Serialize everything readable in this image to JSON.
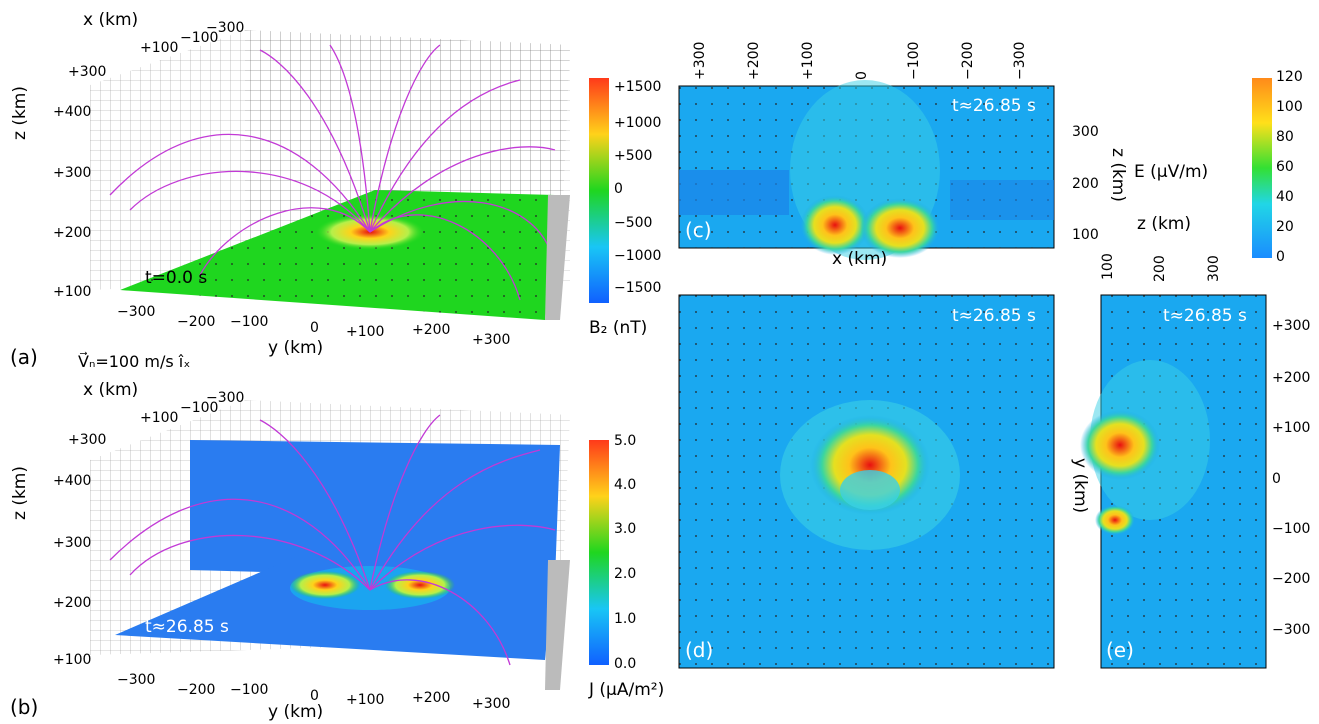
{
  "panel_a": {
    "label": "(a)",
    "time": "t=0.0 s",
    "x_axis_label": "x (km)",
    "y_axis_label": "y (km)",
    "z_axis_label": "z (km)",
    "x_ticks": [
      "+300",
      "+100",
      "−100",
      "−300"
    ],
    "z_ticks": [
      "+400",
      "+300",
      "+200",
      "+100"
    ],
    "y_ticks": [
      "−300",
      "−200",
      "−100",
      "0",
      "+100",
      "+200",
      "+300"
    ],
    "colorbar_label": "B₂ (nT)",
    "colorbar_ticks": [
      "+1500",
      "+1000",
      "+500",
      "0",
      "−500",
      "−1000",
      "−1500"
    ]
  },
  "panel_b": {
    "label": "(b)",
    "time": "t≈26.85 s",
    "velocity_label": "V⃗ₙ=100 m/s îₓ",
    "x_axis_label": "x (km)",
    "y_axis_label": "y (km)",
    "z_axis_label": "z (km)",
    "x_ticks": [
      "+300",
      "+100",
      "−100",
      "−300"
    ],
    "z_ticks": [
      "+400",
      "+300",
      "+200",
      "+100"
    ],
    "y_ticks": [
      "−300",
      "−200",
      "−100",
      "0",
      "+100",
      "+200",
      "+300"
    ],
    "colorbar_label": "J (μA/m²)",
    "colorbar_ticks": [
      "5.0",
      "4.0",
      "3.0",
      "2.0",
      "1.0",
      "0.0"
    ]
  },
  "panel_c": {
    "label": "(c)",
    "time": "t≈26.85 s",
    "x_axis_label": "x (km)",
    "z_axis_label": "z (km)",
    "top_ticks": [
      "+300",
      "+200",
      "+100",
      "0",
      "−100",
      "−200",
      "−300"
    ],
    "right_ticks": [
      "300",
      "200",
      "100"
    ]
  },
  "panel_d": {
    "label": "(d)",
    "time": "t≈26.85 s"
  },
  "panel_e": {
    "label": "(e)",
    "time": "t≈26.85 s",
    "z_axis_label": "z (km)",
    "top_ticks": [
      "100",
      "200",
      "300"
    ],
    "y_axis_label": "y (km)",
    "right_ticks": [
      "+300",
      "+200",
      "+100",
      "0",
      "−100",
      "−200",
      "−300"
    ]
  },
  "e_colorbar": {
    "label": "E (μV/m)",
    "ticks": [
      "120",
      "100",
      "80",
      "60",
      "40",
      "20",
      "0"
    ]
  },
  "colors": {
    "green_field": "#1fd61f",
    "blue_bg": "#1aa8f0",
    "hot": "#e81010"
  }
}
